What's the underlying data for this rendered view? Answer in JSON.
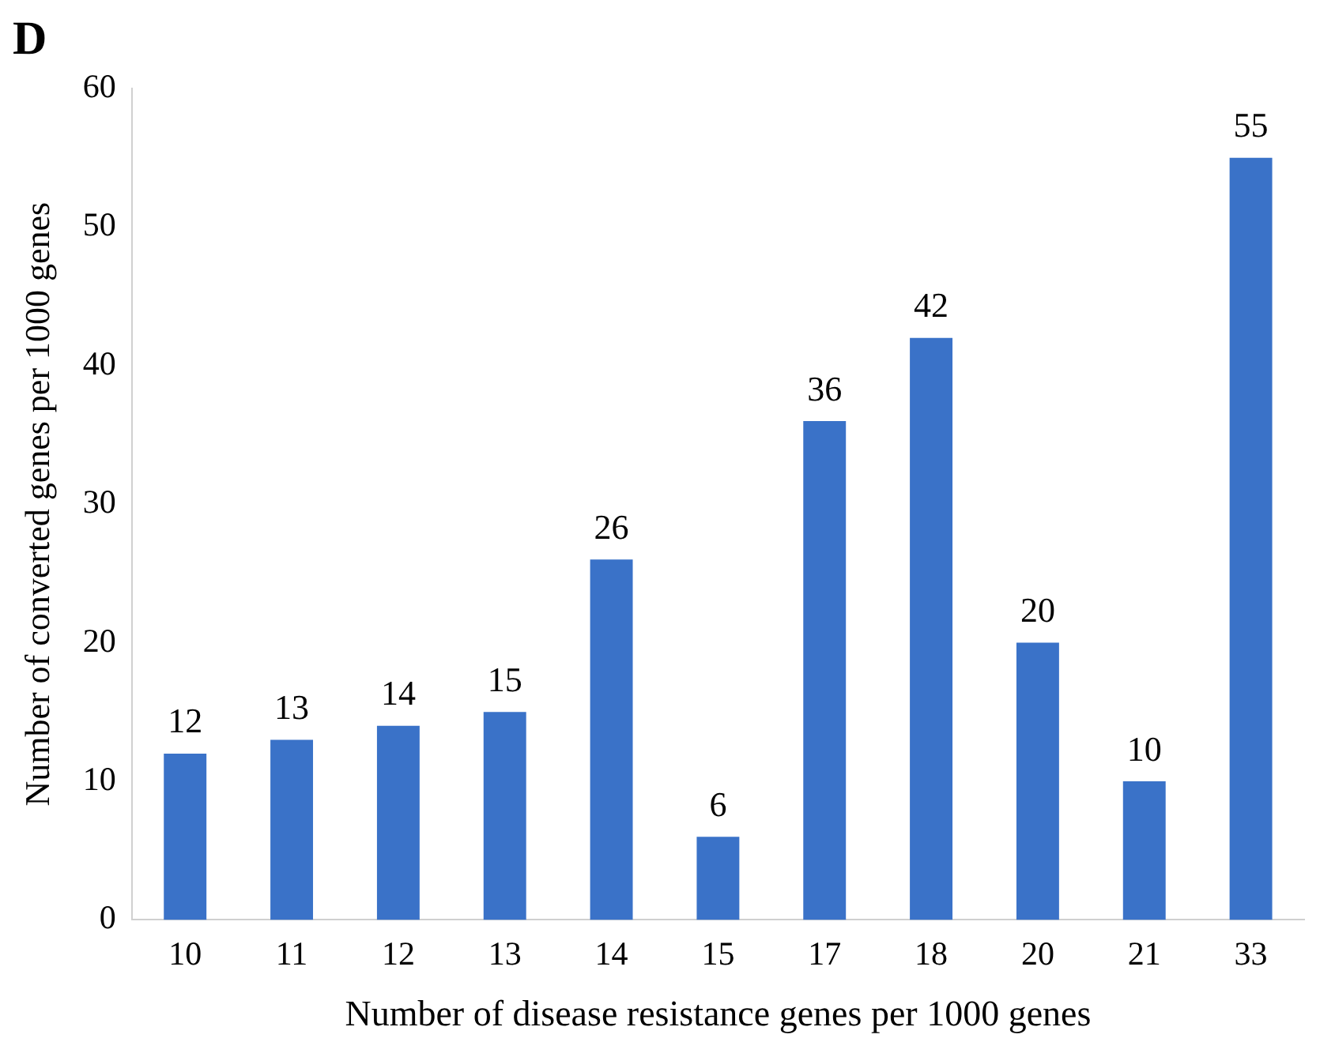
{
  "chart_data": {
    "type": "bar",
    "title": "D",
    "xlabel": "Number of disease resistance genes per 1000 genes",
    "ylabel": "Number of converted genes per 1000 genes",
    "categories": [
      "10",
      "11",
      "12",
      "13",
      "14",
      "15",
      "17",
      "18",
      "20",
      "21",
      "33"
    ],
    "values": [
      12,
      13,
      14,
      15,
      26,
      6,
      36,
      42,
      20,
      10,
      55
    ],
    "color": "#3a72c8",
    "ylim": [
      0,
      60
    ],
    "yticks": [
      0,
      10,
      20,
      30,
      40,
      50,
      60
    ],
    "grid": false,
    "data_labels": true
  }
}
